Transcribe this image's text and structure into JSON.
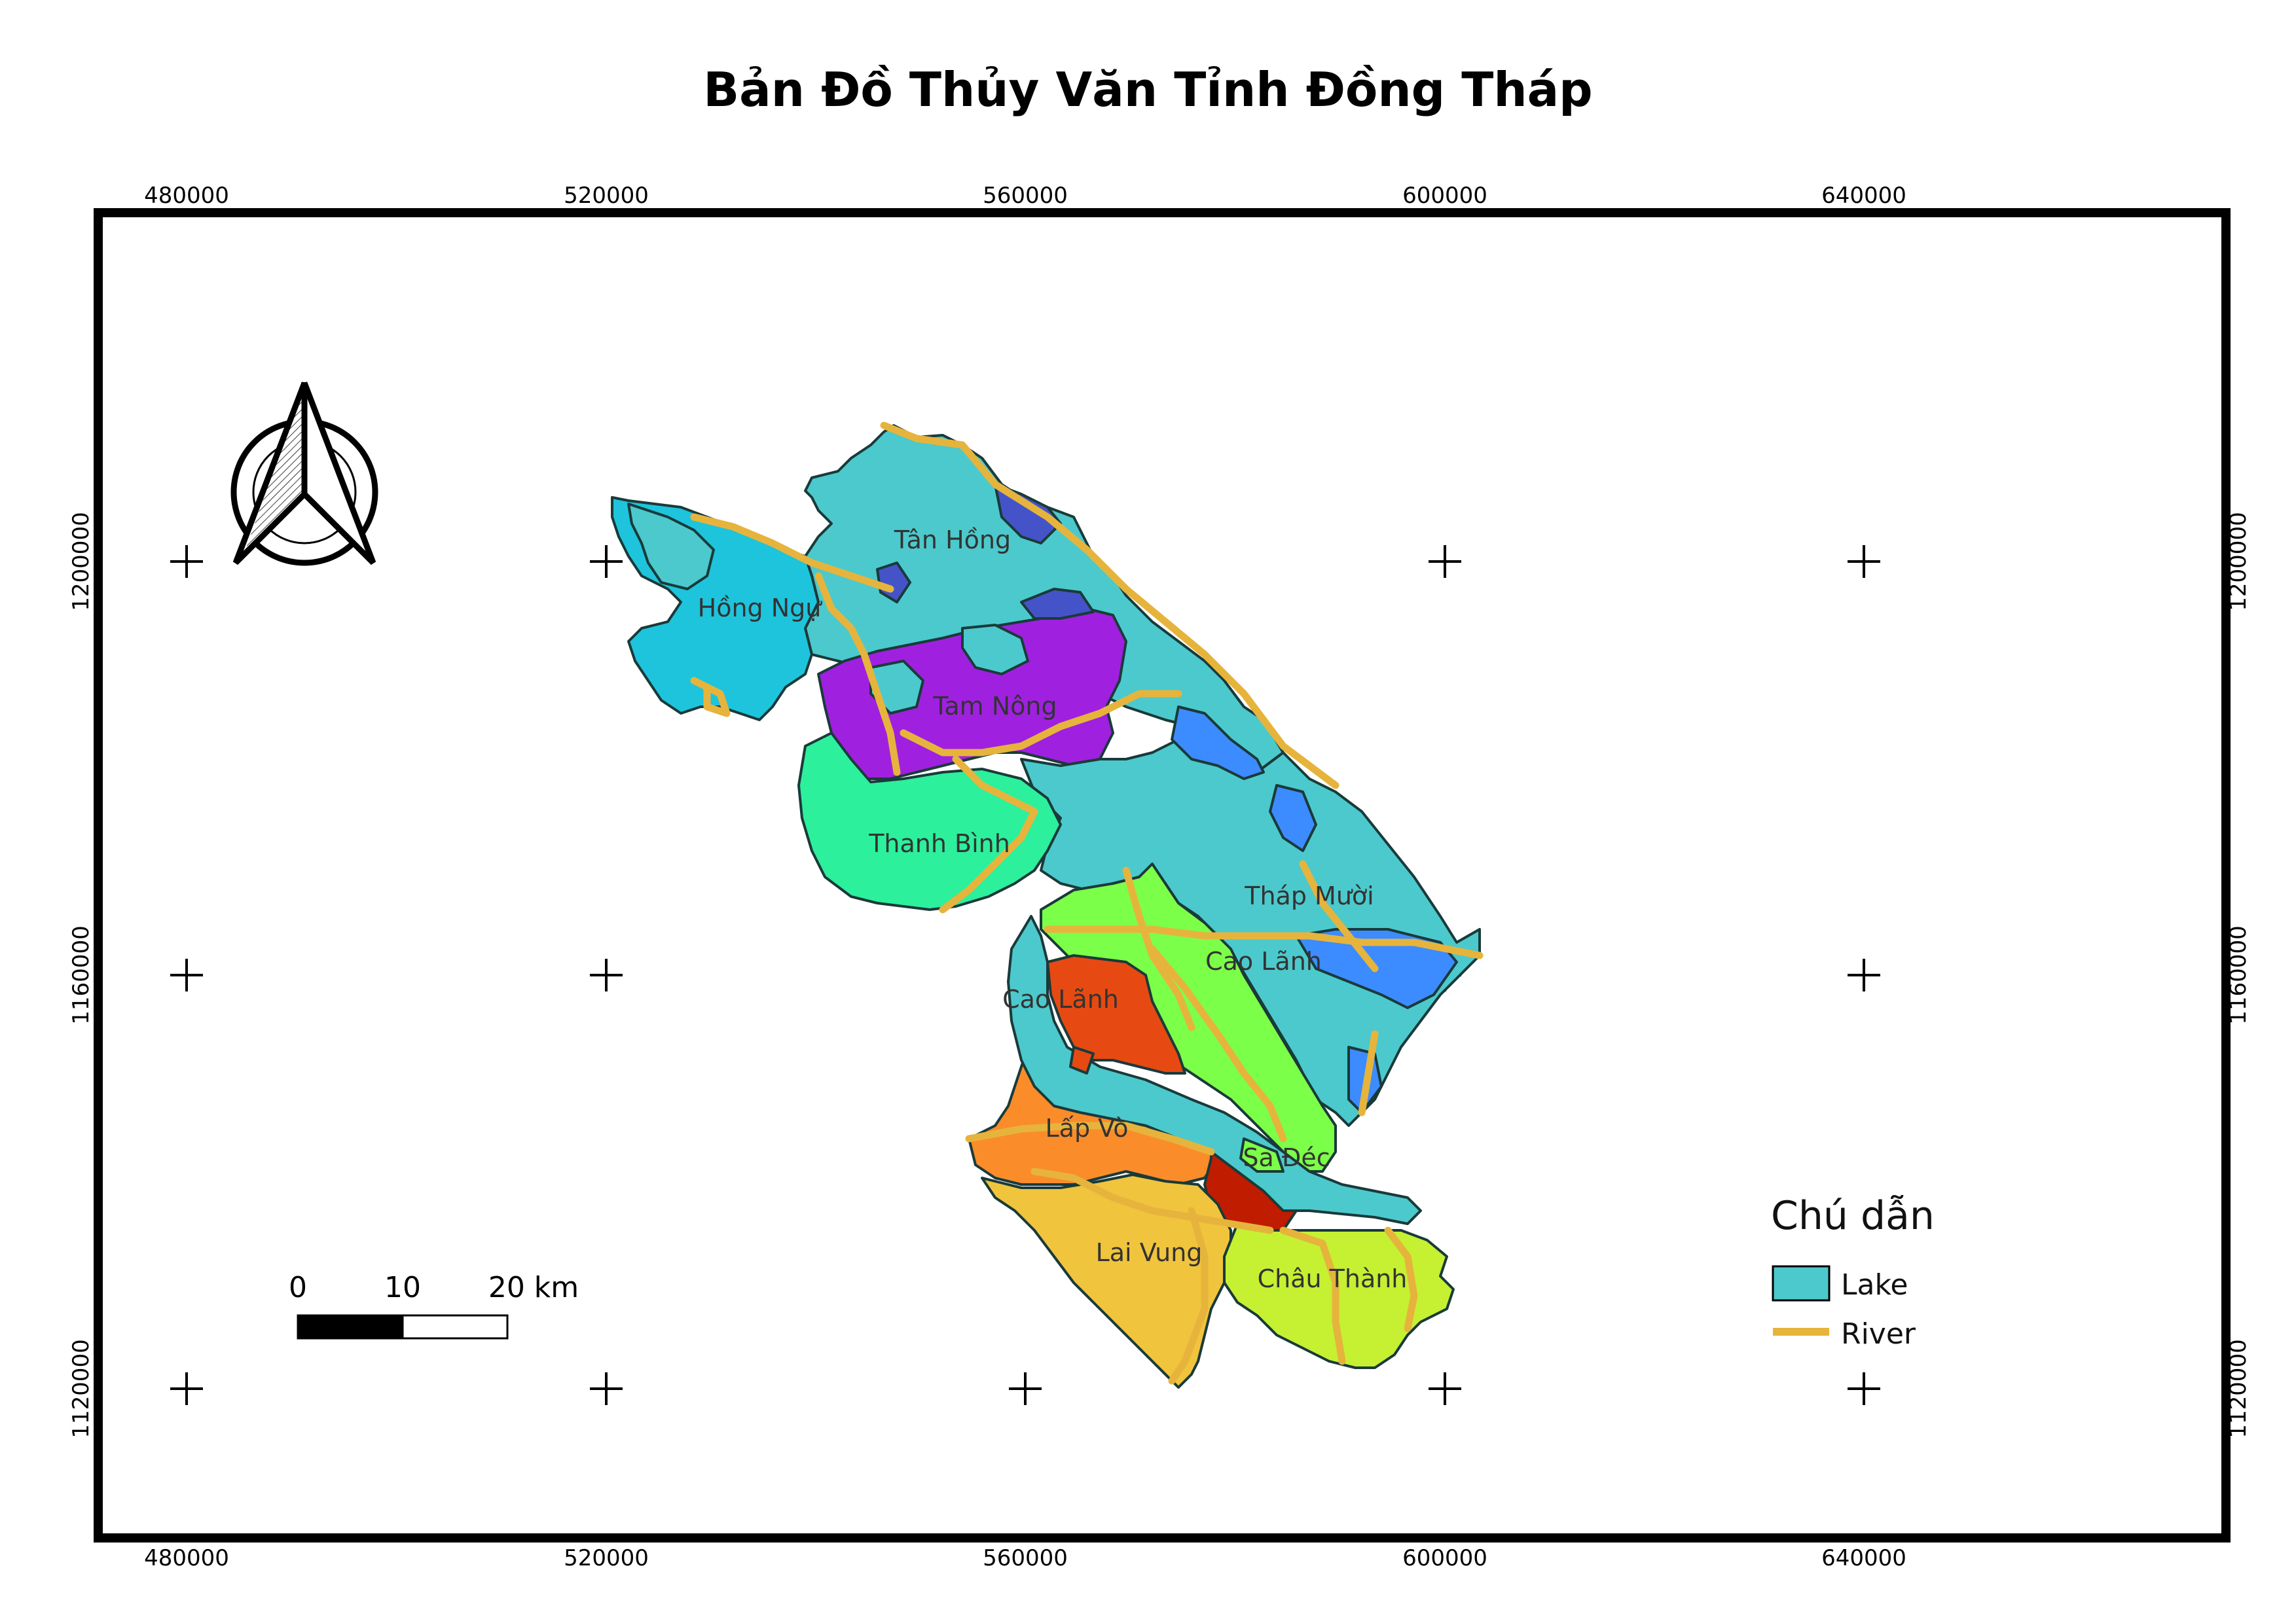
{
  "title": "Bản Đồ Thủy Văn Tỉnh Đồng Tháp",
  "grid": {
    "x_labels": [
      "480000",
      "520000",
      "560000",
      "600000",
      "640000"
    ],
    "y_labels": [
      "1200000",
      "1160000",
      "1120000"
    ]
  },
  "districts": [
    {
      "name": "Tân Hồng",
      "color": "#4cc9cc"
    },
    {
      "name": "Hồng Ngự",
      "color": "#1ec4dc"
    },
    {
      "name": "Tam Nông",
      "color": "#a020e0"
    },
    {
      "name": "Thanh Bình",
      "color": "#2cf09c"
    },
    {
      "name": "Tháp Mười",
      "color": "#4cc9cc"
    },
    {
      "name": "Cao Lãnh",
      "color": "#7cff48"
    },
    {
      "name": "Cao Lãnh",
      "color": "#e64a12"
    },
    {
      "name": "Lấp Vò",
      "color": "#fb8c2a"
    },
    {
      "name": "Sa Đéc",
      "color": "#c01c00"
    },
    {
      "name": "Lai Vung",
      "color": "#f0c43c"
    },
    {
      "name": "Châu Thành",
      "color": "#c6f032"
    }
  ],
  "colors": {
    "lake": "#4cc9cc",
    "river": "#e6b43c",
    "blue_region": "#3c8cff",
    "dark_blue_region": "#4454c8"
  },
  "legend": {
    "title": "Chú dẫn",
    "items": [
      {
        "label": "Lake",
        "type": "fill"
      },
      {
        "label": "River",
        "type": "line"
      }
    ]
  },
  "scale_bar": {
    "labels": [
      "0",
      "10",
      "20 km"
    ]
  },
  "north_arrow": {
    "icon": "north-arrow-icon"
  }
}
